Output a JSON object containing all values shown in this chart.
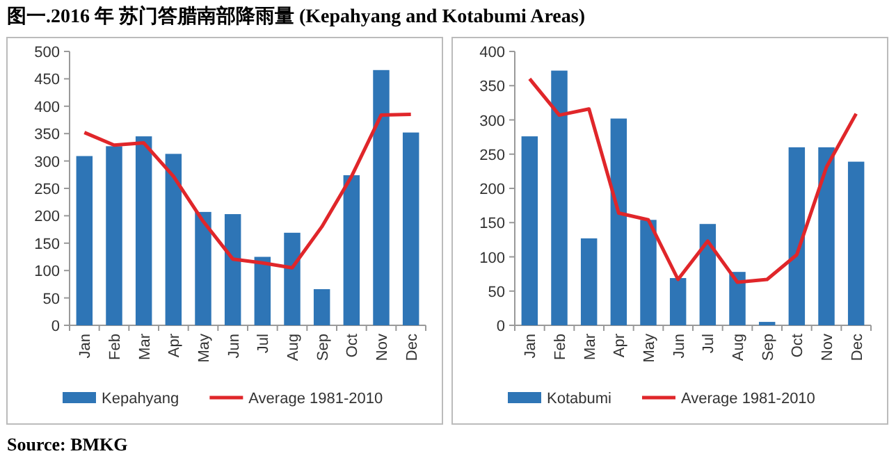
{
  "chart_data": [
    {
      "type": "bar",
      "title": "图一.2016 年 苏门答腊南部降雨量 (Kepahyang and Kotabumi Areas)",
      "annotations": [
        "Source: BMKG"
      ],
      "categories": [
        "Jan",
        "Feb",
        "Mar",
        "Apr",
        "May",
        "Jun",
        "Jul",
        "Aug",
        "Sep",
        "Oct",
        "Nov",
        "Dec"
      ],
      "series": [
        {
          "name": "Kepahyang",
          "color": "#2e75b6",
          "values": [
            309,
            327,
            345,
            313,
            207,
            203,
            125,
            169,
            66,
            274,
            466,
            352
          ]
        },
        {
          "name": "Average 1981-2010",
          "type": "line",
          "color": "#e0262a",
          "values": [
            352,
            329,
            333,
            272,
            190,
            121,
            114,
            105,
            180,
            272,
            384,
            385
          ]
        }
      ],
      "ylim": [
        0,
        500
      ],
      "yticks": [
        0,
        50,
        100,
        150,
        200,
        250,
        300,
        350,
        400,
        450,
        500
      ],
      "legend": "bottom",
      "marker": "none"
    },
    {
      "type": "bar",
      "categories": [
        "Jan",
        "Feb",
        "Mar",
        "Apr",
        "May",
        "Jun",
        "Jul",
        "Aug",
        "Sep",
        "Oct",
        "Nov",
        "Dec"
      ],
      "series": [
        {
          "name": "Kotabumi",
          "color": "#2e75b6",
          "values": [
            276,
            372,
            127,
            302,
            154,
            69,
            148,
            78,
            5,
            260,
            260,
            239
          ]
        },
        {
          "name": "Average 1981-2010",
          "type": "line",
          "color": "#e0262a",
          "values": [
            360,
            307,
            316,
            164,
            154,
            67,
            123,
            63,
            67,
            103,
            231,
            309
          ]
        }
      ],
      "ylim": [
        0,
        400
      ],
      "yticks": [
        0,
        50,
        100,
        150,
        200,
        250,
        300,
        350,
        400
      ],
      "legend": "bottom",
      "marker": "none"
    }
  ]
}
